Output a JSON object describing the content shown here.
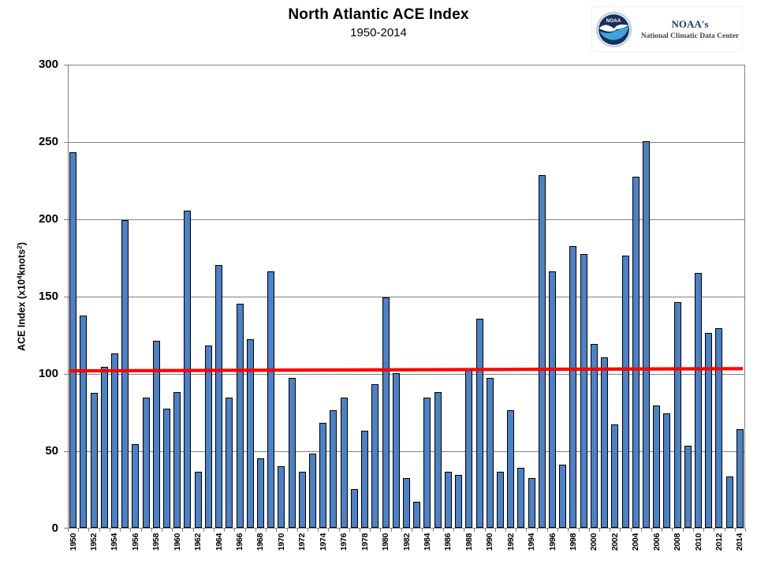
{
  "header": {
    "title": "North Atlantic ACE Index",
    "subtitle": "1950-2014",
    "logo": {
      "emblem_text": "NOAA",
      "org_possessive": "NOAA's",
      "center_name": "National Climatic Data Center"
    }
  },
  "chart_data": {
    "type": "bar",
    "title": "North Atlantic ACE Index",
    "subtitle": "1950-2014",
    "xlabel": "",
    "ylabel": "ACE Index (x10^4 knots^2)",
    "ylabel_parts": {
      "prefix": "ACE Index (x10",
      "sup1": "4",
      "mid": "knots",
      "sup2": "2",
      "suffix": ")"
    },
    "ylim": [
      0,
      300
    ],
    "yticks": [
      0,
      50,
      100,
      150,
      200,
      250,
      300
    ],
    "xtick_label_interval": 2,
    "grid": true,
    "legend": false,
    "bar_color": "#4d81c3",
    "bar_border_color": "#000000",
    "grid_color": "#808080",
    "mean_line": {
      "color": "#ff0000",
      "value": 103,
      "left_value": 102,
      "right_value": 103.4
    },
    "categories": [
      1950,
      1951,
      1952,
      1953,
      1954,
      1955,
      1956,
      1957,
      1958,
      1959,
      1960,
      1961,
      1962,
      1963,
      1964,
      1965,
      1966,
      1967,
      1968,
      1969,
      1970,
      1971,
      1972,
      1973,
      1974,
      1975,
      1976,
      1977,
      1978,
      1979,
      1980,
      1981,
      1982,
      1983,
      1984,
      1985,
      1986,
      1987,
      1988,
      1989,
      1990,
      1991,
      1992,
      1993,
      1994,
      1995,
      1996,
      1997,
      1998,
      1999,
      2000,
      2001,
      2002,
      2003,
      2004,
      2005,
      2006,
      2007,
      2008,
      2009,
      2010,
      2011,
      2012,
      2013,
      2014
    ],
    "values": [
      243,
      137,
      87,
      104,
      113,
      199,
      54,
      84,
      121,
      77,
      88,
      205,
      36,
      118,
      170,
      84,
      145,
      122,
      45,
      166,
      40,
      97,
      36,
      48,
      68,
      76,
      84,
      25,
      63,
      93,
      149,
      100,
      32,
      17,
      84,
      88,
      36,
      34,
      103,
      135,
      97,
      36,
      76,
      39,
      32,
      228,
      166,
      41,
      182,
      177,
      119,
      110,
      67,
      176,
      227,
      250,
      79,
      74,
      146,
      53,
      165,
      126,
      129,
      33,
      64
    ]
  }
}
